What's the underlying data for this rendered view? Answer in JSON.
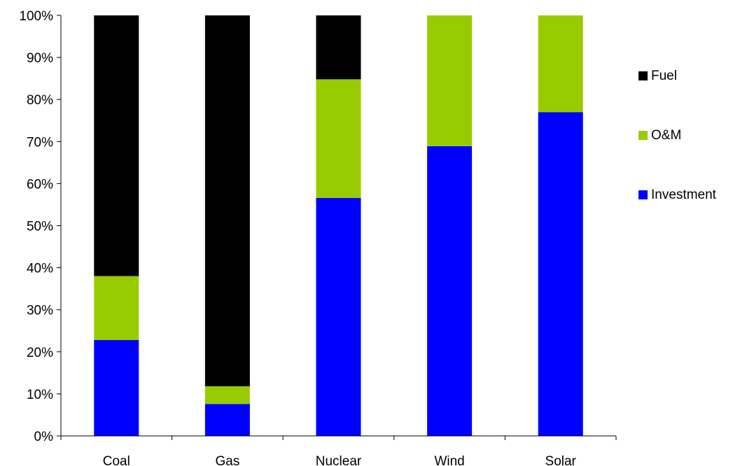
{
  "chart_data": {
    "type": "bar",
    "stacked": true,
    "percent_stacked": true,
    "title": "",
    "xlabel": "",
    "ylabel": "",
    "categories": [
      "Coal",
      "Gas",
      "Nuclear",
      "Wind",
      "Solar"
    ],
    "series": [
      {
        "name": "Investment",
        "color": "#0000ff",
        "values": [
          22.8,
          7.6,
          56.6,
          68.9,
          77.0
        ]
      },
      {
        "name": "O&M",
        "color": "#99cc00",
        "values": [
          15.2,
          4.2,
          28.2,
          31.1,
          23.0
        ]
      },
      {
        "name": "Fuel",
        "color": "#000000",
        "values": [
          62.0,
          88.2,
          15.2,
          0,
          0
        ]
      }
    ],
    "ylim": [
      0,
      100
    ],
    "yticks": [
      "0%",
      "10%",
      "20%",
      "30%",
      "40%",
      "50%",
      "60%",
      "70%",
      "80%",
      "90%",
      "100%"
    ],
    "grid": false,
    "legend": {
      "placement": "right",
      "order": [
        "Fuel",
        "O&M",
        "Investment"
      ]
    }
  }
}
